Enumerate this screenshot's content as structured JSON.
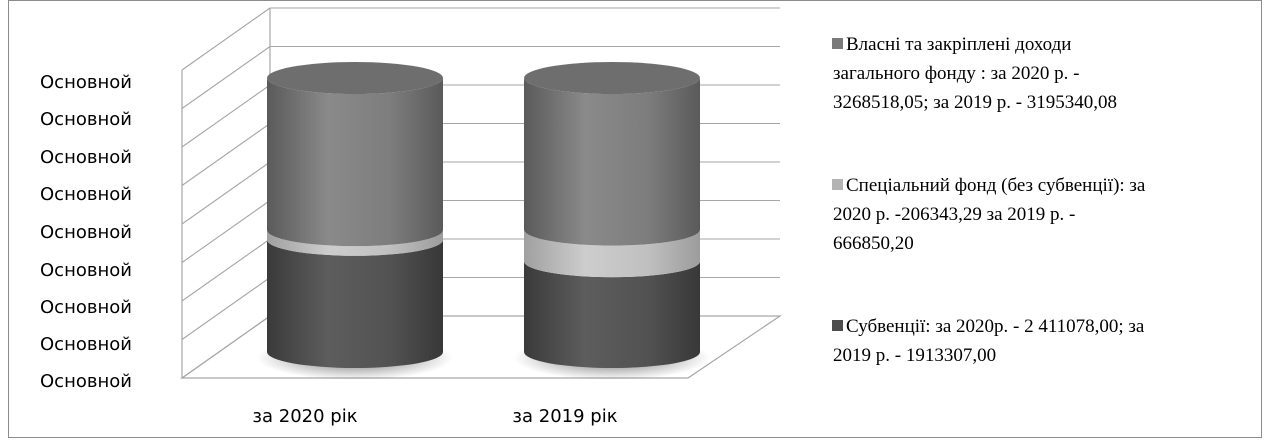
{
  "chart_data": {
    "type": "bar",
    "style": "3d-cylinder-stacked",
    "categories": [
      "за  2020 рік",
      "за 2019 рік"
    ],
    "y_tick_labels": [
      "Основной",
      "Основной",
      "Основной",
      "Основной",
      "Основной",
      "Основной",
      "Основной",
      "Основной",
      "Основной"
    ],
    "series": [
      {
        "name": "Субвенції: за  2020р. - 2 411078,00; за 2019 р. - 1913307,00",
        "values": [
          2411078.0,
          1913307.0
        ],
        "color": "#4d4d4d"
      },
      {
        "name": "Спеціальний фонд (без субвенції): за 2020 р. -206343,29 за  2019 р. - 666850,20",
        "values": [
          206343.29,
          666850.2
        ],
        "color": "#b3b3b3"
      },
      {
        "name": "Власні та закріплені доходи загального фонду : за 2020 р. - 3268518,05; за  2019 р. - 3195340,08",
        "values": [
          3268518.05,
          3195340.08
        ],
        "color": "#7a7a7a"
      }
    ],
    "legend_position": "right",
    "grid": true
  },
  "legend_lines": [
    [
      "Власні та закріплені доходи",
      "загального фонду : за 2020 р. -",
      "3268518,05; за  2019 р. - 3195340,08"
    ],
    [
      "Спеціальний фонд (без субвенції): за",
      "2020 р. -206343,29 за  2019 р. -",
      "666850,20"
    ],
    [
      "Субвенції: за  2020р. - 2 411078,00; за",
      "2019 р. - 1913307,00"
    ]
  ],
  "colors": {
    "frame": "#8c8c8c",
    "grid": "#a6a6a6"
  }
}
